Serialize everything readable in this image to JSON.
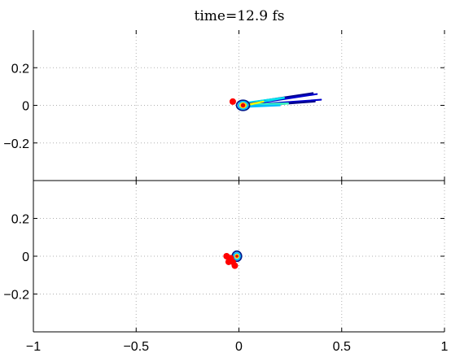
{
  "chart_data": {
    "type": "contour",
    "title": "time=12.9 fs",
    "xlim": [
      -1,
      1
    ],
    "x_ticks": [
      -1,
      -0.5,
      0,
      0.5,
      1
    ],
    "x_tick_labels": [
      "−1",
      "−0.5",
      "0",
      "0.5",
      "1"
    ],
    "grid": true,
    "grid_style": "dotted",
    "colormap": "jet",
    "marker_color": "#ff0000",
    "panels": [
      {
        "ylim": [
          -0.4,
          0.4
        ],
        "y_ticks": [
          0.2,
          0,
          -0.2
        ],
        "y_tick_labels": [
          "0.2",
          "0",
          "−0.2"
        ],
        "markers": [
          [
            -0.03,
            0.02
          ]
        ],
        "blobs": [
          {
            "center": [
              0.02,
              0.0
            ],
            "rx": 0.035,
            "ry": 0.03,
            "color": "#001a8c"
          },
          {
            "center": [
              0.02,
              0.0
            ],
            "rx": 0.025,
            "ry": 0.022,
            "color": "#00bfff"
          },
          {
            "center": [
              0.02,
              0.0
            ],
            "rx": 0.015,
            "ry": 0.014,
            "color": "#ffd200"
          },
          {
            "center": [
              0.02,
              0.0
            ],
            "rx": 0.008,
            "ry": 0.008,
            "color": "#e60000"
          }
        ],
        "streaks": [
          {
            "from": [
              0.04,
              0.01
            ],
            "to": [
              0.36,
              0.065
            ],
            "width": 0.008,
            "color": "#00008b"
          },
          {
            "from": [
              0.04,
              0.005
            ],
            "to": [
              0.38,
              0.06
            ],
            "width": 0.006,
            "color": "#0000cd"
          },
          {
            "from": [
              0.04,
              0.0
            ],
            "to": [
              0.4,
              0.03
            ],
            "width": 0.006,
            "color": "#0000cd"
          },
          {
            "from": [
              0.04,
              -0.005
            ],
            "to": [
              0.37,
              0.02
            ],
            "width": 0.006,
            "color": "#00008b"
          },
          {
            "from": [
              0.04,
              0.01
            ],
            "to": [
              0.22,
              0.04
            ],
            "width": 0.012,
            "color": "#00e5ee"
          },
          {
            "from": [
              0.04,
              0.0
            ],
            "to": [
              0.24,
              0.01
            ],
            "width": 0.01,
            "color": "#40ffbf"
          },
          {
            "from": [
              0.04,
              -0.005
            ],
            "to": [
              0.2,
              0.0
            ],
            "width": 0.008,
            "color": "#00bfff"
          },
          {
            "from": [
              0.03,
              0.0
            ],
            "to": [
              0.12,
              0.02
            ],
            "width": 0.006,
            "color": "#ffff00"
          }
        ]
      },
      {
        "ylim": [
          -0.4,
          0.4
        ],
        "y_ticks": [
          0.2,
          0,
          -0.2
        ],
        "y_tick_labels": [
          "0.2",
          "0",
          "−0.2"
        ],
        "markers": [
          [
            -0.06,
            0.0
          ],
          [
            -0.04,
            -0.01
          ],
          [
            -0.05,
            -0.03
          ],
          [
            -0.03,
            -0.03
          ],
          [
            -0.02,
            -0.05
          ]
        ],
        "blobs": [
          {
            "center": [
              -0.01,
              0.0
            ],
            "rx": 0.025,
            "ry": 0.03,
            "color": "#001a8c"
          },
          {
            "center": [
              -0.01,
              0.0
            ],
            "rx": 0.017,
            "ry": 0.02,
            "color": "#00bfff"
          },
          {
            "center": [
              -0.01,
              0.0
            ],
            "rx": 0.009,
            "ry": 0.01,
            "color": "#ffd200"
          },
          {
            "center": [
              -0.01,
              0.0
            ],
            "rx": 0.004,
            "ry": 0.004,
            "color": "#e60000"
          }
        ],
        "streaks": []
      }
    ]
  }
}
